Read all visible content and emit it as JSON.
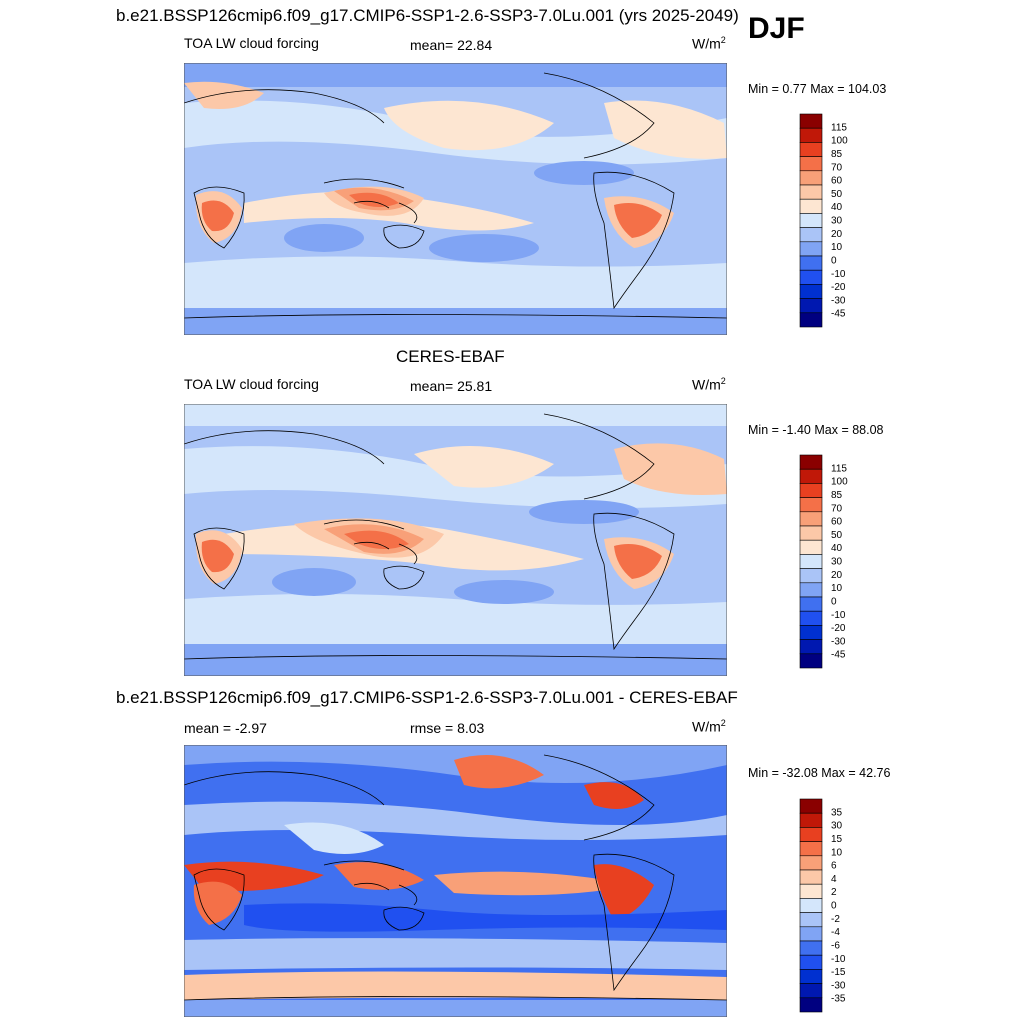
{
  "season": "DJF",
  "units_base": "W/m",
  "units_exp": "2",
  "panels": [
    {
      "title": "b.e21.BSSP126cmip6.f09_g17.CMIP6-SSP1-2.6-SSP3-7.0Lu.001 (yrs 2025-2049)",
      "left_label": "TOA LW cloud forcing",
      "center_label": "mean=  22.84",
      "minmax": "Min =   0.77 Max = 104.03"
    },
    {
      "title": "CERES-EBAF",
      "left_label": "TOA LW cloud forcing",
      "center_label": "mean=  25.81",
      "minmax": "Min =  -1.40 Max =  88.08"
    },
    {
      "title": "b.e21.BSSP126cmip6.f09_g17.CMIP6-SSP1-2.6-SSP3-7.0Lu.001 - CERES-EBAF",
      "left_label": "mean =  -2.97",
      "center_label": "rmse =   8.03",
      "minmax": "Min = -32.08 Max =  42.76"
    }
  ],
  "chart_data": [
    {
      "type": "heatmap",
      "title": "b.e21.BSSP126cmip6.f09_g17.CMIP6-SSP1-2.6-SSP3-7.0Lu.001 (yrs 2025-2049)",
      "variable": "TOA LW cloud forcing",
      "units": "W/m2",
      "mean": 22.84,
      "min": 0.77,
      "max": 104.03,
      "colorbar_levels": [
        -45,
        -30,
        -20,
        -10,
        0,
        10,
        20,
        30,
        40,
        50,
        60,
        70,
        85,
        100,
        115
      ]
    },
    {
      "type": "heatmap",
      "title": "CERES-EBAF",
      "variable": "TOA LW cloud forcing",
      "units": "W/m2",
      "mean": 25.81,
      "min": -1.4,
      "max": 88.08,
      "colorbar_levels": [
        -45,
        -30,
        -20,
        -10,
        0,
        10,
        20,
        30,
        40,
        50,
        60,
        70,
        85,
        100,
        115
      ]
    },
    {
      "type": "heatmap",
      "title": "b.e21.BSSP126cmip6.f09_g17.CMIP6-SSP1-2.6-SSP3-7.0Lu.001 - CERES-EBAF",
      "units": "W/m2",
      "mean": -2.97,
      "rmse": 8.03,
      "min": -32.08,
      "max": 42.76,
      "colorbar_levels": [
        -35,
        -30,
        -15,
        -10,
        -6,
        -4,
        -2,
        0,
        2,
        4,
        6,
        10,
        15,
        30,
        35
      ]
    }
  ],
  "colors": {
    "scale": [
      "#000080",
      "#0018b0",
      "#0030d0",
      "#2050f0",
      "#4070f0",
      "#80a4f4",
      "#aac4f7",
      "#d4e6fb",
      "#fde6d2",
      "#fcc8a8",
      "#f8a078",
      "#f47048",
      "#e84020",
      "#c01808",
      "#8a0000"
    ]
  }
}
